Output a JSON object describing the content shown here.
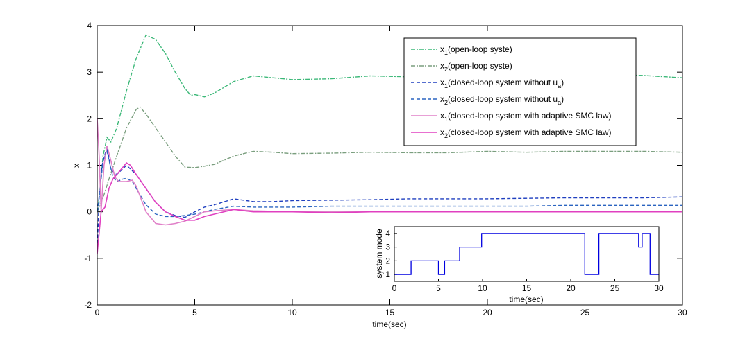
{
  "chart_data": [
    {
      "type": "line",
      "xlabel": "time(sec)",
      "ylabel": "x",
      "xlim": [
        0,
        30
      ],
      "ylim": [
        -2,
        4
      ],
      "xticks": [
        "0",
        "5",
        "10",
        "15",
        "20",
        "25",
        "30"
      ],
      "yticks": [
        "-2",
        "-1",
        "0",
        "1",
        "2",
        "3",
        "4"
      ],
      "legend_position": "top-right",
      "series": [
        {
          "name": "x1(open-loop syste)",
          "label_main": "x",
          "label_sub": "1",
          "label_rest": "(open-loop syste)",
          "color": "#3CB878",
          "dash": "dashdot",
          "x": [
            0,
            0.1,
            0.3,
            0.5,
            0.7,
            1,
            1.5,
            2,
            2.5,
            3,
            3.5,
            4,
            4.5,
            4.8,
            5,
            5.5,
            6,
            7,
            8,
            9,
            10,
            12,
            14,
            16,
            18,
            20,
            22,
            24,
            26,
            28,
            30
          ],
          "y": [
            0,
            0.3,
            1.2,
            1.6,
            1.5,
            1.8,
            2.6,
            3.3,
            3.8,
            3.7,
            3.4,
            3.0,
            2.65,
            2.5,
            2.52,
            2.47,
            2.55,
            2.8,
            2.92,
            2.88,
            2.84,
            2.86,
            2.92,
            2.9,
            2.88,
            2.9,
            2.92,
            2.95,
            2.95,
            2.93,
            2.88
          ]
        },
        {
          "name": "x2(open-loop syste)",
          "label_main": "x",
          "label_sub": "2",
          "label_rest": "(open-loop syste)",
          "color": "#7A9E7E",
          "dash": "dashdot",
          "x": [
            0,
            0.3,
            0.6,
            1,
            1.5,
            2,
            2.2,
            2.5,
            3,
            3.5,
            4,
            4.5,
            5,
            5.5,
            6,
            7,
            8,
            9,
            10,
            12,
            14,
            16,
            18,
            20,
            22,
            24,
            26,
            28,
            30
          ],
          "y": [
            0,
            0.3,
            0.7,
            1.2,
            1.8,
            2.2,
            2.25,
            2.1,
            1.8,
            1.5,
            1.2,
            0.96,
            0.95,
            0.98,
            1.02,
            1.2,
            1.3,
            1.28,
            1.25,
            1.26,
            1.28,
            1.27,
            1.27,
            1.3,
            1.28,
            1.3,
            1.3,
            1.3,
            1.28
          ]
        },
        {
          "name": "x1(closed-loop system without ua)",
          "label_main": "x",
          "label_sub": "1",
          "label_rest": "(closed-loop system without u",
          "label_sub2": "a",
          "label_end": ")",
          "color": "#1F3FBF",
          "dash": "dash",
          "x": [
            0,
            0.1,
            0.25,
            0.5,
            0.7,
            1,
            1.5,
            2,
            2.5,
            3,
            3.5,
            4,
            4.5,
            5,
            5.5,
            6,
            7,
            8,
            9,
            10,
            12,
            14,
            16,
            18,
            20,
            22,
            24,
            26,
            28,
            30
          ],
          "y": [
            -0.8,
            0.3,
            1.0,
            1.4,
            0.9,
            0.8,
            1.0,
            0.8,
            0.5,
            0.2,
            0.0,
            -0.08,
            -0.12,
            0.0,
            0.1,
            0.15,
            0.28,
            0.22,
            0.22,
            0.24,
            0.25,
            0.26,
            0.28,
            0.28,
            0.28,
            0.29,
            0.3,
            0.3,
            0.3,
            0.32
          ]
        },
        {
          "name": "x2(closed-loop system without ua)",
          "label_main": "x",
          "label_sub": "2",
          "label_rest": "(closed-loop system without u",
          "label_sub2": "a",
          "label_end": ")",
          "color": "#2A64C0",
          "dash": "dash",
          "x": [
            0,
            0.15,
            0.3,
            0.5,
            0.8,
            1,
            1.3,
            1.5,
            1.8,
            2,
            2.5,
            3,
            3.5,
            4,
            4.5,
            5,
            5.5,
            6,
            7,
            8,
            9,
            10,
            12,
            14,
            16,
            18,
            20,
            22,
            24,
            26,
            28,
            30
          ],
          "y": [
            0,
            0.5,
            1.1,
            1.3,
            0.75,
            0.65,
            0.7,
            0.72,
            0.65,
            0.5,
            0.15,
            -0.05,
            -0.1,
            -0.1,
            -0.08,
            -0.05,
            0.0,
            0.05,
            0.12,
            0.1,
            0.1,
            0.1,
            0.12,
            0.12,
            0.12,
            0.12,
            0.12,
            0.12,
            0.14,
            0.14,
            0.14,
            0.14
          ]
        },
        {
          "name": "x1(closed-loop system with adaptive SMC law)",
          "label_main": "x",
          "label_sub": "1",
          "label_rest": "(closed-loop system with adaptive SMC law)",
          "color": "#E080C8",
          "dash": "solid",
          "x": [
            0,
            0.1,
            0.2,
            0.35,
            0.5,
            0.7,
            0.9,
            1.1,
            1.5,
            1.8,
            2,
            2.5,
            3,
            3.5,
            4,
            4.5,
            5,
            5.5,
            6,
            7,
            8,
            10,
            12,
            14,
            16,
            18,
            20,
            22,
            24,
            26,
            28,
            30
          ],
          "y": [
            2.0,
            1.2,
            0.0,
            1.0,
            1.42,
            1.1,
            0.75,
            0.65,
            0.65,
            0.68,
            0.55,
            0.0,
            -0.25,
            -0.28,
            -0.25,
            -0.2,
            -0.1,
            0.0,
            0.02,
            0.05,
            0.02,
            0.0,
            0.0,
            0.0,
            0.0,
            0.0,
            0.0,
            0.0,
            0.0,
            0.0,
            0.0,
            0.0
          ]
        },
        {
          "name": "x2(closed-loop system with adaptive SMC law)",
          "label_main": "x",
          "label_sub": "2",
          "label_rest": "(closed-loop system with adaptive SMC law)",
          "color": "#E040C0",
          "dash": "solid",
          "x": [
            0,
            0.2,
            0.4,
            0.6,
            0.8,
            1,
            1.5,
            1.7,
            2,
            2.5,
            3,
            3.5,
            4,
            4.5,
            5,
            5.5,
            6,
            7,
            8,
            10,
            12,
            14,
            16,
            18,
            20,
            22,
            24,
            26,
            28,
            30
          ],
          "y": [
            -0.9,
            0.0,
            0.1,
            0.5,
            0.7,
            0.8,
            1.05,
            1.0,
            0.8,
            0.5,
            0.2,
            0.0,
            -0.1,
            -0.18,
            -0.18,
            -0.1,
            -0.05,
            0.05,
            0.0,
            0.0,
            -0.02,
            0.0,
            0.0,
            0.0,
            0.0,
            0.0,
            0.0,
            0.0,
            0.0,
            0.0
          ]
        }
      ]
    },
    {
      "type": "line",
      "title": "",
      "xlabel": "time(sec)",
      "ylabel": "system mode",
      "xlim": [
        0,
        30
      ],
      "ylim": [
        0.5,
        4.5
      ],
      "xticks": [
        "0",
        "5",
        "10",
        "15",
        "20",
        "25",
        "30"
      ],
      "yticks": [
        "1",
        "2",
        "3",
        "4"
      ],
      "series": [
        {
          "name": "system mode",
          "color": "#0000E0",
          "step": true,
          "x": [
            0,
            1.9,
            5.0,
            5.7,
            7.4,
            9.9,
            21.6,
            23.2,
            27.7,
            28.1,
            29.0,
            30
          ],
          "y": [
            1,
            2,
            1,
            2,
            3,
            4,
            1,
            4,
            3,
            4,
            1,
            1
          ]
        }
      ]
    }
  ]
}
